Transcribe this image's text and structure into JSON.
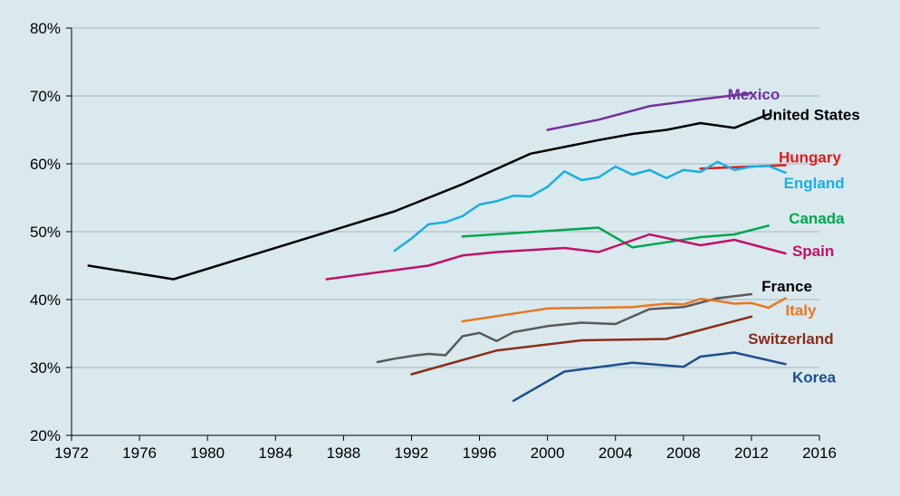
{
  "chart_data": {
    "type": "line",
    "title": "",
    "xlabel": "",
    "ylabel": "",
    "xlim": [
      1972,
      2016
    ],
    "ylim": [
      20,
      80
    ],
    "x_ticks": [
      1972,
      1976,
      1980,
      1984,
      1988,
      1992,
      1996,
      2000,
      2004,
      2008,
      2012,
      2016
    ],
    "y_ticks": [
      "20%",
      "30%",
      "40%",
      "50%",
      "60%",
      "70%",
      "80%"
    ],
    "grid": "horizontal",
    "legend": "direct labels at line ends",
    "series": [
      {
        "name": "Mexico",
        "color": "#7030a0",
        "label_pos": [
          2010.6,
          70.3
        ],
        "points": [
          [
            2000,
            65.0
          ],
          [
            2003,
            66.5
          ],
          [
            2006,
            68.5
          ],
          [
            2009,
            69.5
          ],
          [
            2012,
            70.4
          ]
        ]
      },
      {
        "name": "United States",
        "color": "#000000",
        "label_pos": [
          2012.6,
          67.3
        ],
        "points": [
          [
            1973,
            45.0
          ],
          [
            1978,
            43.0
          ],
          [
            1991,
            53.0
          ],
          [
            1995,
            57.0
          ],
          [
            1999,
            61.5
          ],
          [
            2003,
            63.5
          ],
          [
            2005,
            64.4
          ],
          [
            2007,
            65.0
          ],
          [
            2009,
            66.0
          ],
          [
            2011,
            65.3
          ],
          [
            2013,
            67.3
          ]
        ]
      },
      {
        "name": "Hungary",
        "color": "#e31c1c",
        "label_pos": [
          2013.6,
          61.0
        ],
        "points": [
          [
            2009,
            59.3
          ],
          [
            2011,
            59.5
          ],
          [
            2014,
            59.8
          ]
        ]
      },
      {
        "name": "England",
        "color": "#19aee6",
        "label_pos": [
          2013.9,
          57.2
        ],
        "points": [
          [
            1991,
            47.2
          ],
          [
            1992,
            49.0
          ],
          [
            1993,
            51.1
          ],
          [
            1994,
            51.4
          ],
          [
            1995,
            52.3
          ],
          [
            1996,
            54.0
          ],
          [
            1997,
            54.5
          ],
          [
            1998,
            55.3
          ],
          [
            1999,
            55.2
          ],
          [
            2000,
            56.6
          ],
          [
            2001,
            58.9
          ],
          [
            2002,
            57.6
          ],
          [
            2003,
            58.0
          ],
          [
            2004,
            59.6
          ],
          [
            2005,
            58.4
          ],
          [
            2006,
            59.1
          ],
          [
            2007,
            57.9
          ],
          [
            2008,
            59.1
          ],
          [
            2009,
            58.8
          ],
          [
            2010,
            60.3
          ],
          [
            2011,
            59.1
          ],
          [
            2012,
            59.6
          ],
          [
            2013,
            59.7
          ],
          [
            2014,
            58.7
          ]
        ]
      },
      {
        "name": "Canada",
        "color": "#00a651",
        "label_pos": [
          2014.2,
          52.0
        ],
        "points": [
          [
            1995,
            49.3
          ],
          [
            2003,
            50.6
          ],
          [
            2005,
            47.7
          ],
          [
            2009,
            49.2
          ],
          [
            2011,
            49.6
          ],
          [
            2013,
            50.9
          ]
        ]
      },
      {
        "name": "Spain",
        "color": "#c0116b",
        "label_pos": [
          2014.4,
          47.2
        ],
        "points": [
          [
            1987,
            43.0
          ],
          [
            1993,
            45.0
          ],
          [
            1995,
            46.5
          ],
          [
            1997,
            47.0
          ],
          [
            2001,
            47.6
          ],
          [
            2003,
            47.0
          ],
          [
            2006,
            49.6
          ],
          [
            2009,
            48.0
          ],
          [
            2011,
            48.8
          ],
          [
            2014,
            46.8
          ]
        ]
      },
      {
        "name": "France",
        "color": "#000000",
        "label_pos": [
          2012.6,
          42.0
        ],
        "points": [
          [
            1990,
            30.8
          ],
          [
            1991,
            31.3
          ],
          [
            1992,
            31.7
          ],
          [
            1993,
            32.0
          ],
          [
            1994,
            31.8
          ],
          [
            1995,
            34.6
          ],
          [
            1996,
            35.1
          ],
          [
            1997,
            33.9
          ],
          [
            1998,
            35.2
          ],
          [
            2000,
            36.1
          ],
          [
            2002,
            36.6
          ],
          [
            2004,
            36.4
          ],
          [
            2006,
            38.6
          ],
          [
            2008,
            38.9
          ],
          [
            2010,
            40.2
          ],
          [
            2012,
            40.8
          ]
        ],
        "line_color": "#595959"
      },
      {
        "name": "Italy",
        "color": "#e87722",
        "label_pos": [
          2014.0,
          38.5
        ],
        "points": [
          [
            1995,
            36.8
          ],
          [
            2000,
            38.7
          ],
          [
            2005,
            38.9
          ],
          [
            2007,
            39.4
          ],
          [
            2008,
            39.3
          ],
          [
            2009,
            40.1
          ],
          [
            2010,
            39.8
          ],
          [
            2011,
            39.4
          ],
          [
            2012,
            39.5
          ],
          [
            2013,
            38.8
          ],
          [
            2014,
            40.2
          ]
        ]
      },
      {
        "name": "Switzerland",
        "color": "#8b2c17",
        "label_pos": [
          2011.8,
          34.3
        ],
        "points": [
          [
            1992,
            29.0
          ],
          [
            1997,
            32.5
          ],
          [
            2002,
            34.0
          ],
          [
            2007,
            34.2
          ],
          [
            2012,
            37.5
          ]
        ]
      },
      {
        "name": "Korea",
        "color": "#1f4e8c",
        "label_pos": [
          2014.4,
          28.6
        ],
        "points": [
          [
            1998,
            25.1
          ],
          [
            2001,
            29.4
          ],
          [
            2005,
            30.7
          ],
          [
            2008,
            30.1
          ],
          [
            2009,
            31.6
          ],
          [
            2011,
            32.2
          ],
          [
            2014,
            30.5
          ]
        ]
      }
    ]
  }
}
